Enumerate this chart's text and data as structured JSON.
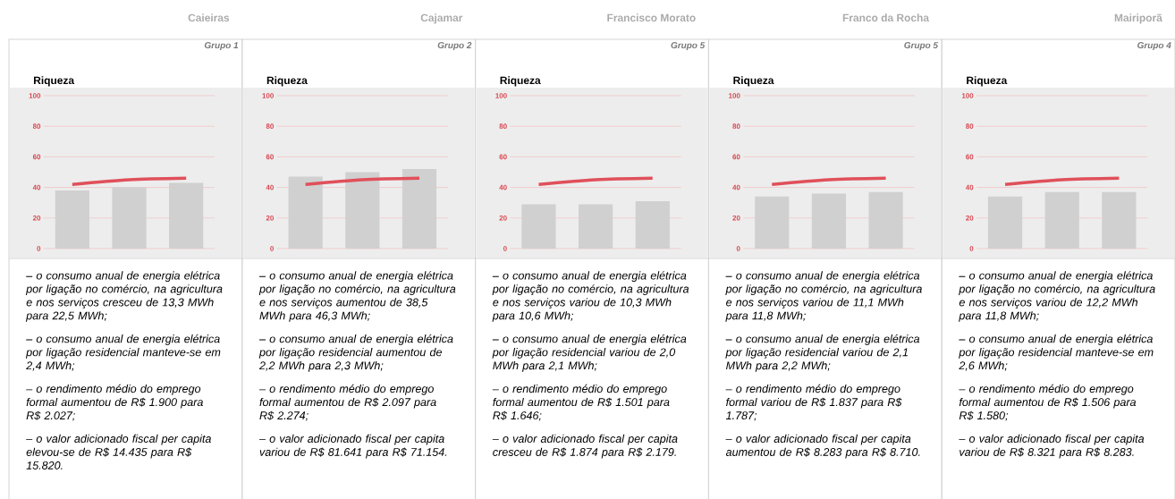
{
  "chart_data": [
    {
      "type": "bar",
      "title": "Caieiras",
      "subtitle": "Grupo 1",
      "ylabel": "Riqueza",
      "categories": [
        null,
        null,
        null
      ],
      "series": [
        {
          "type": "bar",
          "color": "#d0d0d0",
          "values": [
            38,
            40,
            43
          ]
        },
        {
          "type": "line",
          "color": "#e0505a",
          "values": [
            42,
            45,
            46
          ]
        }
      ],
      "ylim": [
        0,
        100
      ],
      "yticks": [
        0,
        20,
        40,
        60,
        80,
        100
      ],
      "grid": "y",
      "tick_labels": "y",
      "annotations": [
        "– o consumo anual de energia elétrica por ligação no comércio, na agricultura e nos serviços cresceu de 13,3 MWh para 22,5 MWh;",
        "– o consumo anual de energia elétrica por ligação residencial manteve-se em 2,4 MWh;",
        "– o rendimento médio do emprego formal aumentou de R$ 1.900 para R$ 2.027;",
        "– o valor adicionado fiscal per capita elevou-se de R$ 14.435 para R$ 15.820."
      ]
    },
    {
      "type": "bar",
      "title": "Cajamar",
      "subtitle": "Grupo 2",
      "ylabel": "Riqueza",
      "categories": [
        null,
        null,
        null
      ],
      "series": [
        {
          "type": "bar",
          "color": "#d0d0d0",
          "values": [
            47,
            50,
            52
          ]
        },
        {
          "type": "line",
          "color": "#e0505a",
          "values": [
            42,
            45,
            46
          ]
        }
      ],
      "ylim": [
        0,
        100
      ],
      "yticks": [
        0,
        20,
        40,
        60,
        80,
        100
      ],
      "grid": "y",
      "tick_labels": "y",
      "annotations": [
        "– o consumo anual de energia elétrica por ligação no comércio, na agricultura e nos serviços aumentou de 38,5 MWh para 46,3 MWh;",
        "– o consumo anual de energia elétrica por ligação residencial aumentou de 2,2 MWh para 2,3 MWh;",
        "– o rendimento médio do emprego formal aumentou de R$ 2.097 para R$ 2.274;",
        "– o valor adicionado fiscal per capita variou de R$ 81.641 para R$ 71.154."
      ]
    },
    {
      "type": "bar",
      "title": "Francisco Morato",
      "subtitle": "Grupo 5",
      "ylabel": "Riqueza",
      "categories": [
        null,
        null,
        null
      ],
      "series": [
        {
          "type": "bar",
          "color": "#d0d0d0",
          "values": [
            29,
            29,
            31
          ]
        },
        {
          "type": "line",
          "color": "#e0505a",
          "values": [
            42,
            45,
            46
          ]
        }
      ],
      "ylim": [
        0,
        100
      ],
      "yticks": [
        0,
        20,
        40,
        60,
        80,
        100
      ],
      "grid": "y",
      "tick_labels": "y",
      "annotations": [
        "– o consumo anual de energia elétrica por ligação no comércio, na agricultura e nos serviços variou de 10,3 MWh para 10,6 MWh;",
        "– o consumo anual de energia elétrica por ligação residencial variou de 2,0 MWh para 2,1 MWh;",
        "– o rendimento médio do emprego formal aumentou de R$ 1.501 para R$ 1.646;",
        "– o valor adicionado fiscal per capita cresceu de R$ 1.874 para R$ 2.179."
      ]
    },
    {
      "type": "bar",
      "title": "Franco da Rocha",
      "subtitle": "Grupo 5",
      "ylabel": "Riqueza",
      "categories": [
        null,
        null,
        null
      ],
      "series": [
        {
          "type": "bar",
          "color": "#d0d0d0",
          "values": [
            34,
            36,
            37
          ]
        },
        {
          "type": "line",
          "color": "#e0505a",
          "values": [
            42,
            45,
            46
          ]
        }
      ],
      "ylim": [
        0,
        100
      ],
      "yticks": [
        0,
        20,
        40,
        60,
        80,
        100
      ],
      "grid": "y",
      "tick_labels": "y",
      "annotations": [
        "– o consumo anual de energia elétrica por ligação no comércio, na agricultura e nos serviços variou de 11,1 MWh para 11,8 MWh;",
        "– o consumo anual de energia elétrica por ligação residencial variou de 2,1 MWh para 2,2 MWh;",
        "– o rendimento médio do emprego formal variou de R$ 1.837 para R$ 1.787;",
        "– o valor adicionado fiscal per capita aumentou de R$ 8.283 para R$ 8.710."
      ]
    },
    {
      "type": "bar",
      "title": "Mairiporã",
      "subtitle": "Grupo 4",
      "ylabel": "Riqueza",
      "categories": [
        null,
        null,
        null
      ],
      "series": [
        {
          "type": "bar",
          "color": "#d0d0d0",
          "values": [
            34,
            37,
            37
          ]
        },
        {
          "type": "line",
          "color": "#e0505a",
          "values": [
            42,
            45,
            46
          ]
        }
      ],
      "ylim": [
        0,
        100
      ],
      "yticks": [
        0,
        20,
        40,
        60,
        80,
        100
      ],
      "grid": "y",
      "tick_labels": "y",
      "annotations": [
        "– o consumo anual de energia elétrica por ligação no comércio, na agricultura e nos serviços variou de 12,2 MWh para 11,8 MWh;",
        "– o consumo anual de energia elétrica por ligação residencial manteve-se em 2,6 MWh;",
        "– o rendimento médio do emprego formal aumentou de R$ 1.506 para R$ 1.580;",
        "– o valor adicionado fiscal per capita variou de R$ 8.321 para R$ 8.283."
      ]
    }
  ]
}
